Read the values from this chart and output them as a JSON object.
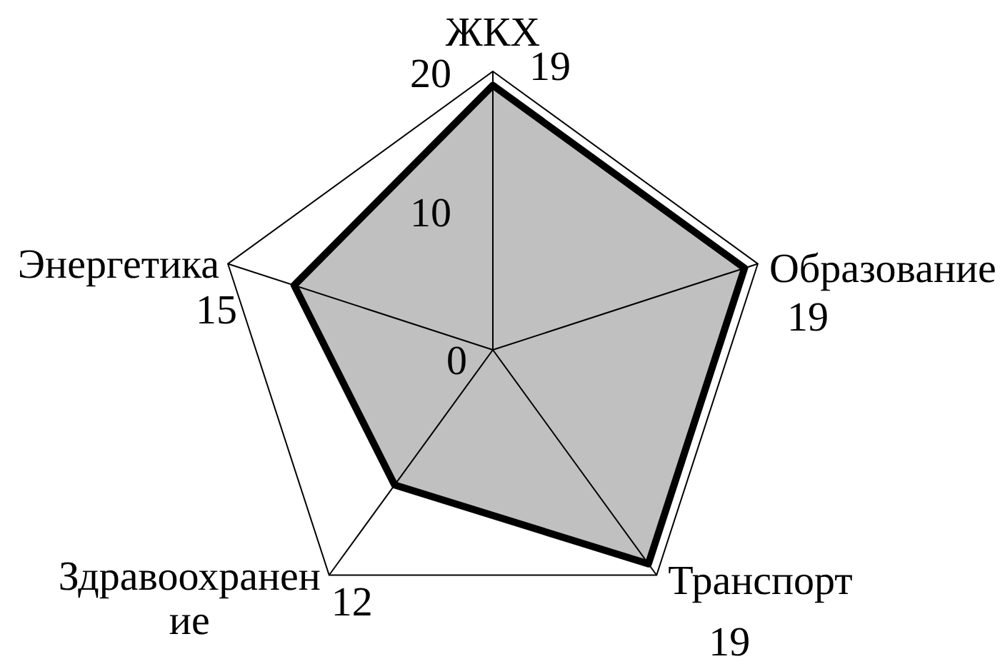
{
  "chart_data": {
    "type": "radar",
    "categories": [
      "ЖКХ",
      "Образование",
      "Транспорт",
      "Здравоохранение",
      "Энергетика"
    ],
    "series": [
      {
        "color": "#c0c0c0",
        "values": [
          19,
          19,
          19,
          12,
          15
        ]
      }
    ],
    "ylim": [
      0,
      20
    ],
    "yticks": [
      0,
      10,
      20
    ],
    "data_labels": true
  }
}
